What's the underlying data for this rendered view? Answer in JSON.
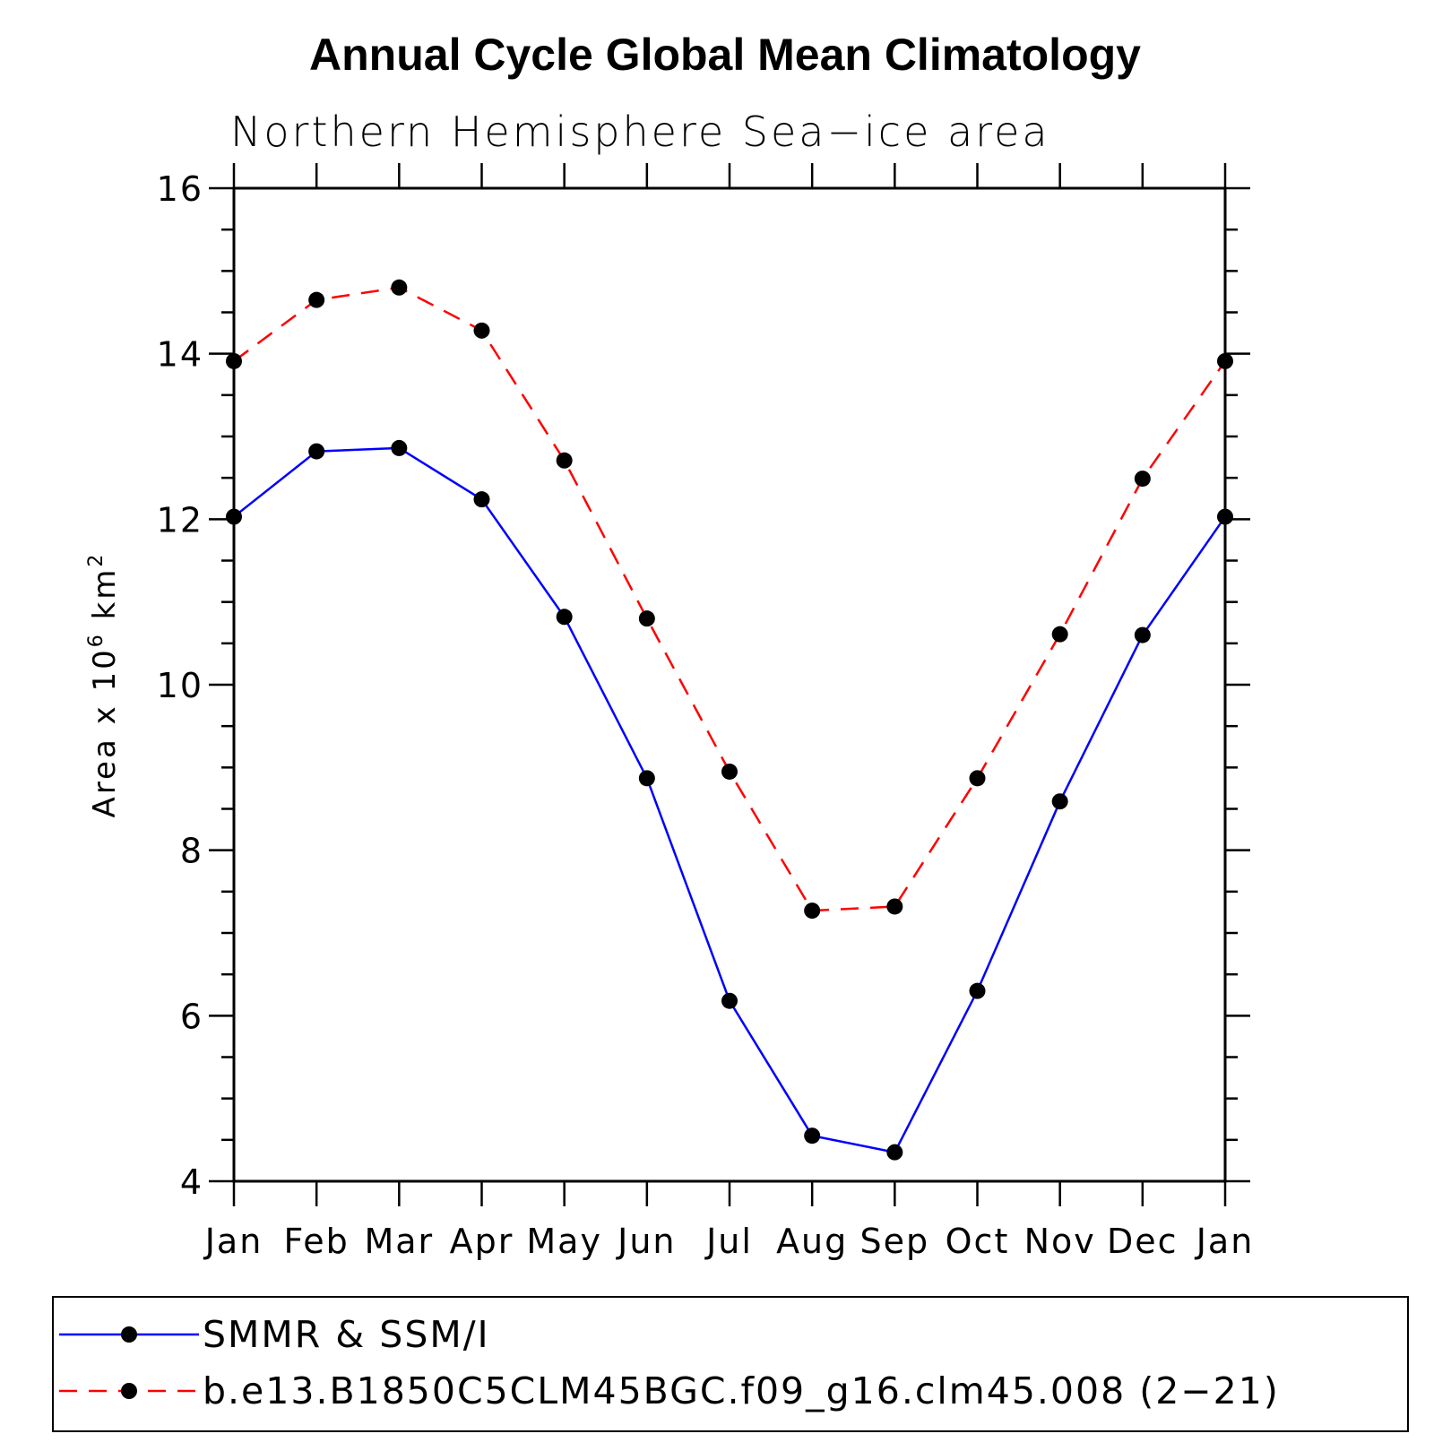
{
  "chart_data": {
    "type": "line",
    "title": "Annual Cycle Global Mean Climatology",
    "subtitle": "Northern Hemisphere Sea−ice area",
    "ylabel_text": "Area x 10",
    "ylabel_exp": "6",
    "ylabel_unit": " km",
    "ylabel_unit_exp": "2",
    "categories": [
      "Jan",
      "Feb",
      "Mar",
      "Apr",
      "May",
      "Jun",
      "Jul",
      "Aug",
      "Sep",
      "Oct",
      "Nov",
      "Dec",
      "Jan"
    ],
    "ylim": [
      4,
      16
    ],
    "yticks": [
      4,
      6,
      8,
      10,
      12,
      14,
      16
    ],
    "series": [
      {
        "name": "SMMR & SSM/I",
        "color": "#0000ff",
        "dash": "solid",
        "values": [
          12.03,
          12.82,
          12.86,
          12.24,
          10.82,
          8.87,
          6.18,
          4.55,
          4.35,
          6.3,
          8.59,
          10.6,
          12.03
        ]
      },
      {
        "name": "b.e13.B1850C5CLM45BGC.f09_g16.clm45.008 (2−21)",
        "color": "#ff0000",
        "dash": "dashed",
        "values": [
          13.91,
          14.65,
          14.8,
          14.28,
          12.71,
          10.8,
          8.95,
          7.27,
          7.32,
          8.87,
          10.61,
          12.49,
          13.91
        ]
      }
    ],
    "legend_position": "bottom"
  }
}
